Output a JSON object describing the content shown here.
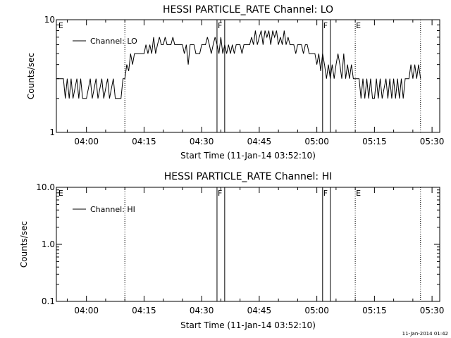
{
  "chart_data": [
    {
      "type": "line",
      "title": "HESSI PARTICLE_RATE Channel: LO",
      "xlabel": "Start Time (11-Jan-14 03:52:10)",
      "ylabel": "Counts/sec",
      "y_scale": "log",
      "xlim": [
        "03:52:10",
        "05:32:00"
      ],
      "ylim": [
        1,
        10
      ],
      "x_tick_labels": [
        "04:00",
        "04:15",
        "04:30",
        "04:45",
        "05:00",
        "05:15",
        "05:30"
      ],
      "y_tick_labels": [
        "1",
        "10"
      ],
      "legend": {
        "placement": "top-left",
        "entries": [
          "Channel: LO"
        ]
      },
      "markers": [
        {
          "time": "03:52:30",
          "label": "E",
          "style": "none"
        },
        {
          "time": "04:10:00",
          "label": "",
          "style": "dotted"
        },
        {
          "time": "04:34:00",
          "label": "F",
          "style": "solid"
        },
        {
          "time": "04:36:00",
          "label": "",
          "style": "solid"
        },
        {
          "time": "05:01:30",
          "label": "F",
          "style": "solid"
        },
        {
          "time": "05:03:30",
          "label": "",
          "style": "solid"
        },
        {
          "time": "05:10:00",
          "label": "E",
          "style": "dotted"
        },
        {
          "time": "05:27:00",
          "label": "",
          "style": "dotted"
        }
      ],
      "series": [
        {
          "name": "Channel: LO",
          "points": [
            [
              "03:52:10",
              3.0
            ],
            [
              "03:54:00",
              3.0
            ],
            [
              "03:54:30",
              2.0
            ],
            [
              "03:55:00",
              3.0
            ],
            [
              "03:55:30",
              2.0
            ],
            [
              "03:56:00",
              3.0
            ],
            [
              "03:56:30",
              2.0
            ],
            [
              "03:57:30",
              3.0
            ],
            [
              "03:58:00",
              2.0
            ],
            [
              "03:58:30",
              3.0
            ],
            [
              "03:59:00",
              2.0
            ],
            [
              "04:00:00",
              2.0
            ],
            [
              "04:01:00",
              3.0
            ],
            [
              "04:01:30",
              2.0
            ],
            [
              "04:02:30",
              3.0
            ],
            [
              "04:03:00",
              2.0
            ],
            [
              "04:04:00",
              3.0
            ],
            [
              "04:04:30",
              2.0
            ],
            [
              "04:05:30",
              3.0
            ],
            [
              "04:06:00",
              2.0
            ],
            [
              "04:07:00",
              3.0
            ],
            [
              "04:07:30",
              2.0
            ],
            [
              "04:09:00",
              2.0
            ],
            [
              "04:09:30",
              3.0
            ],
            [
              "04:10:00",
              3.0
            ],
            [
              "04:10:30",
              4.0
            ],
            [
              "04:11:00",
              3.5
            ],
            [
              "04:11:30",
              5.0
            ],
            [
              "04:12:00",
              4.0
            ],
            [
              "04:12:30",
              5.0
            ],
            [
              "04:15:00",
              5.0
            ],
            [
              "04:15:30",
              6.0
            ],
            [
              "04:16:00",
              5.0
            ],
            [
              "04:16:30",
              6.0
            ],
            [
              "04:17:00",
              5.0
            ],
            [
              "04:17:30",
              7.0
            ],
            [
              "04:18:00",
              5.0
            ],
            [
              "04:18:30",
              6.0
            ],
            [
              "04:19:00",
              7.0
            ],
            [
              "04:19:30",
              6.0
            ],
            [
              "04:20:00",
              6.0
            ],
            [
              "04:20:30",
              7.0
            ],
            [
              "04:21:00",
              6.0
            ],
            [
              "04:22:00",
              6.0
            ],
            [
              "04:22:30",
              7.0
            ],
            [
              "04:23:00",
              6.0
            ],
            [
              "04:25:00",
              6.0
            ],
            [
              "04:25:30",
              5.0
            ],
            [
              "04:26:00",
              6.0
            ],
            [
              "04:26:30",
              4.0
            ],
            [
              "04:27:00",
              6.0
            ],
            [
              "04:28:00",
              6.0
            ],
            [
              "04:28:30",
              5.0
            ],
            [
              "04:29:30",
              5.0
            ],
            [
              "04:30:00",
              6.0
            ],
            [
              "04:31:00",
              6.0
            ],
            [
              "04:31:30",
              7.0
            ],
            [
              "04:32:00",
              6.0
            ],
            [
              "04:32:30",
              5.0
            ],
            [
              "04:33:00",
              6.0
            ],
            [
              "04:33:30",
              7.0
            ],
            [
              "04:34:00",
              6.0
            ],
            [
              "04:34:30",
              5.0
            ],
            [
              "04:35:00",
              7.0
            ],
            [
              "04:35:30",
              5.0
            ],
            [
              "04:36:00",
              6.0
            ],
            [
              "04:36:30",
              5.0
            ],
            [
              "04:37:00",
              6.0
            ],
            [
              "04:37:30",
              5.0
            ],
            [
              "04:38:00",
              6.0
            ],
            [
              "04:38:30",
              5.0
            ],
            [
              "04:39:00",
              6.0
            ],
            [
              "04:40:00",
              6.0
            ],
            [
              "04:40:30",
              5.0
            ],
            [
              "04:41:00",
              6.0
            ],
            [
              "04:42:30",
              6.0
            ],
            [
              "04:43:00",
              7.0
            ],
            [
              "04:43:30",
              6.0
            ],
            [
              "04:44:00",
              8.0
            ],
            [
              "04:44:30",
              6.0
            ],
            [
              "04:45:00",
              7.0
            ],
            [
              "04:45:30",
              8.0
            ],
            [
              "04:46:00",
              6.0
            ],
            [
              "04:46:30",
              8.0
            ],
            [
              "04:47:00",
              7.0
            ],
            [
              "04:47:30",
              8.0
            ],
            [
              "04:48:00",
              6.0
            ],
            [
              "04:48:30",
              8.0
            ],
            [
              "04:49:00",
              7.0
            ],
            [
              "04:49:30",
              8.0
            ],
            [
              "04:50:00",
              6.0
            ],
            [
              "04:50:30",
              7.0
            ],
            [
              "04:51:00",
              6.0
            ],
            [
              "04:51:30",
              8.0
            ],
            [
              "04:52:00",
              6.0
            ],
            [
              "04:52:30",
              7.0
            ],
            [
              "04:53:00",
              6.0
            ],
            [
              "04:54:00",
              6.0
            ],
            [
              "04:54:30",
              5.0
            ],
            [
              "04:55:00",
              6.0
            ],
            [
              "04:56:00",
              6.0
            ],
            [
              "04:56:30",
              5.0
            ],
            [
              "04:57:00",
              6.0
            ],
            [
              "04:57:30",
              6.0
            ],
            [
              "04:58:00",
              5.0
            ],
            [
              "04:59:00",
              5.0
            ],
            [
              "04:59:30",
              5.0
            ],
            [
              "05:00:00",
              4.0
            ],
            [
              "05:00:30",
              5.0
            ],
            [
              "05:01:00",
              3.5
            ],
            [
              "05:01:30",
              5.0
            ],
            [
              "05:02:00",
              4.0
            ],
            [
              "05:02:30",
              3.0
            ],
            [
              "05:03:00",
              4.0
            ],
            [
              "05:03:30",
              3.0
            ],
            [
              "05:04:00",
              4.0
            ],
            [
              "05:04:30",
              3.0
            ],
            [
              "05:05:00",
              4.0
            ],
            [
              "05:05:30",
              5.0
            ],
            [
              "05:06:00",
              4.0
            ],
            [
              "05:06:30",
              3.0
            ],
            [
              "05:07:00",
              5.0
            ],
            [
              "05:07:30",
              3.0
            ],
            [
              "05:08:00",
              4.0
            ],
            [
              "05:08:30",
              3.0
            ],
            [
              "05:09:00",
              4.0
            ],
            [
              "05:09:30",
              3.0
            ],
            [
              "05:10:00",
              3.0
            ],
            [
              "05:10:30",
              3.0
            ],
            [
              "05:11:00",
              3.0
            ],
            [
              "05:11:30",
              2.0
            ],
            [
              "05:12:00",
              3.0
            ],
            [
              "05:12:30",
              2.0
            ],
            [
              "05:13:00",
              3.0
            ],
            [
              "05:13:30",
              2.0
            ],
            [
              "05:14:00",
              3.0
            ],
            [
              "05:14:30",
              2.0
            ],
            [
              "05:15:00",
              2.0
            ],
            [
              "05:15:30",
              3.0
            ],
            [
              "05:16:00",
              2.0
            ],
            [
              "05:16:30",
              3.0
            ],
            [
              "05:17:00",
              2.0
            ],
            [
              "05:18:00",
              3.0
            ],
            [
              "05:18:30",
              2.0
            ],
            [
              "05:19:00",
              3.0
            ],
            [
              "05:19:30",
              2.0
            ],
            [
              "05:20:00",
              3.0
            ],
            [
              "05:20:30",
              2.0
            ],
            [
              "05:21:00",
              3.0
            ],
            [
              "05:21:30",
              2.0
            ],
            [
              "05:22:00",
              3.0
            ],
            [
              "05:22:30",
              2.0
            ],
            [
              "05:23:00",
              3.0
            ],
            [
              "05:24:00",
              3.0
            ],
            [
              "05:24:30",
              4.0
            ],
            [
              "05:25:00",
              3.0
            ],
            [
              "05:25:30",
              4.0
            ],
            [
              "05:26:00",
              3.0
            ],
            [
              "05:26:30",
              4.0
            ],
            [
              "05:27:00",
              3.0
            ]
          ]
        }
      ]
    },
    {
      "type": "line",
      "title": "HESSI PARTICLE_RATE Channel: HI",
      "xlabel": "Start Time (11-Jan-14 03:52:10)",
      "ylabel": "Counts/sec",
      "y_scale": "log",
      "xlim": [
        "03:52:10",
        "05:32:00"
      ],
      "ylim": [
        0.1,
        10.0
      ],
      "x_tick_labels": [
        "04:00",
        "04:15",
        "04:30",
        "04:45",
        "05:00",
        "05:15",
        "05:30"
      ],
      "y_tick_labels": [
        "0.1",
        "1.0",
        "10.0"
      ],
      "legend": {
        "placement": "top-left",
        "entries": [
          "Channel: HI"
        ]
      },
      "markers": [
        {
          "time": "03:52:30",
          "label": "E",
          "style": "none"
        },
        {
          "time": "04:10:00",
          "label": "",
          "style": "dotted"
        },
        {
          "time": "04:34:00",
          "label": "F",
          "style": "solid"
        },
        {
          "time": "04:36:00",
          "label": "",
          "style": "solid"
        },
        {
          "time": "05:01:30",
          "label": "F",
          "style": "solid"
        },
        {
          "time": "05:03:30",
          "label": "",
          "style": "solid"
        },
        {
          "time": "05:10:00",
          "label": "E",
          "style": "dotted"
        },
        {
          "time": "05:27:00",
          "label": "",
          "style": "dotted"
        }
      ],
      "series": [
        {
          "name": "Channel: HI",
          "points": []
        }
      ]
    }
  ],
  "footer": {
    "timestamp": "11-Jan-2014 01:42"
  }
}
